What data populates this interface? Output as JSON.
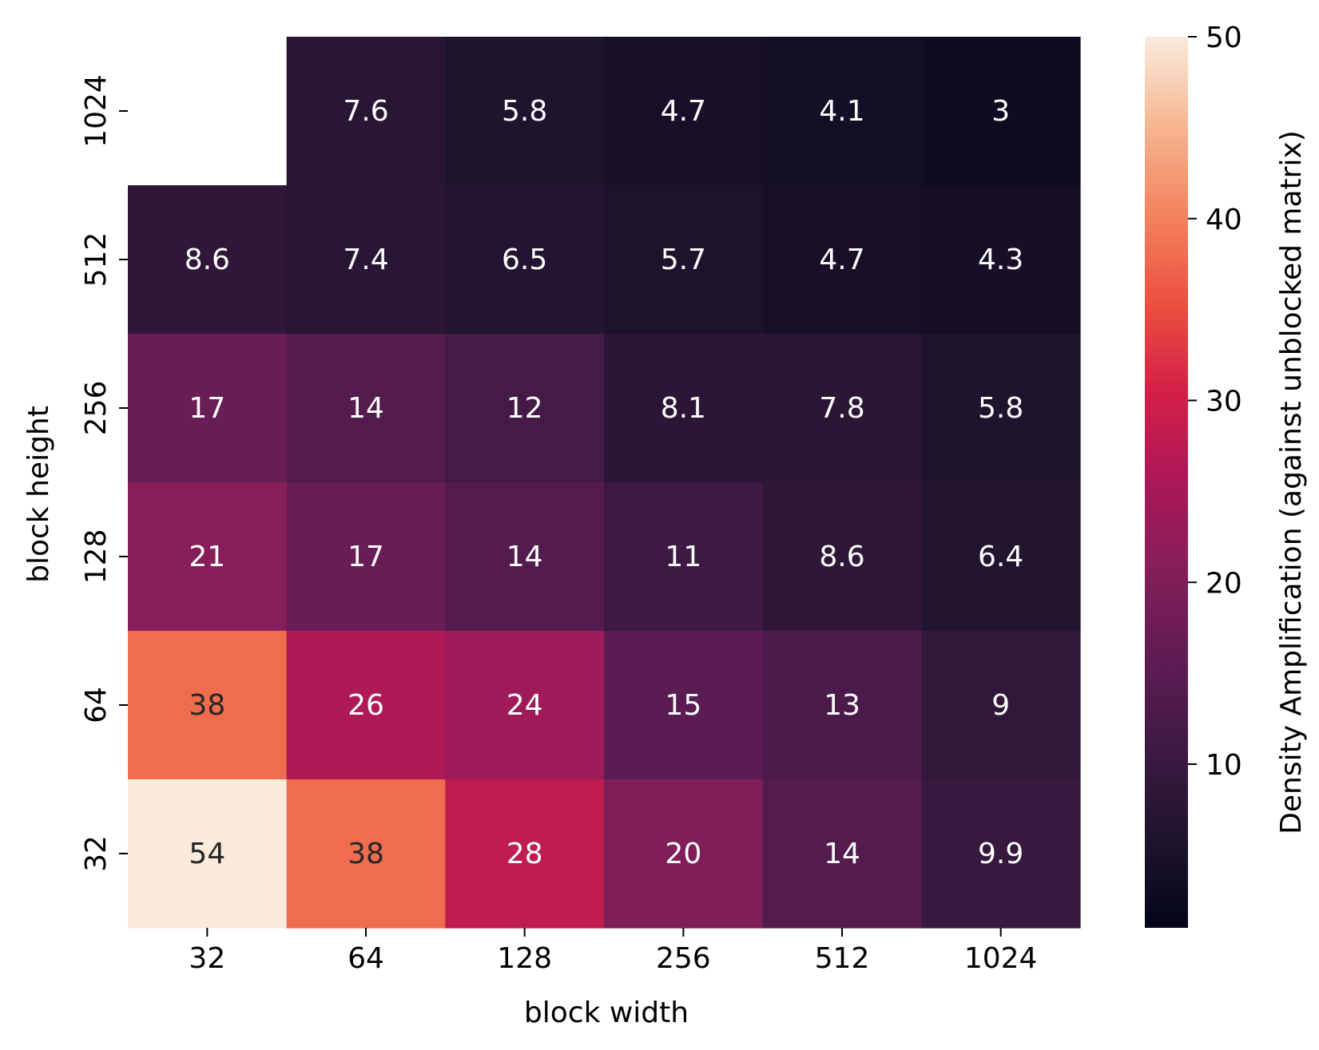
{
  "chart_data": {
    "type": "heatmap",
    "xlabel": "block width",
    "ylabel": "block height",
    "x_categories": [
      "32",
      "64",
      "128",
      "256",
      "512",
      "1024"
    ],
    "y_categories": [
      "1024",
      "512",
      "256",
      "128",
      "64",
      "32"
    ],
    "values": [
      [
        null,
        7.6,
        5.8,
        4.7,
        4.1,
        3
      ],
      [
        8.6,
        7.4,
        6.5,
        5.7,
        4.7,
        4.3
      ],
      [
        17,
        14,
        12,
        8.1,
        7.8,
        5.8
      ],
      [
        21,
        17,
        14,
        11,
        8.6,
        6.4
      ],
      [
        38,
        26,
        24,
        15,
        13,
        9
      ],
      [
        54,
        38,
        28,
        20,
        14,
        9.9
      ]
    ],
    "colorbar": {
      "label": "Density Amplification (against unblocked matrix)",
      "min": 1,
      "max": 50,
      "ticks": [
        10,
        20,
        30,
        40,
        50
      ],
      "colormap": "rocket"
    },
    "annotations": true,
    "grid": false
  }
}
